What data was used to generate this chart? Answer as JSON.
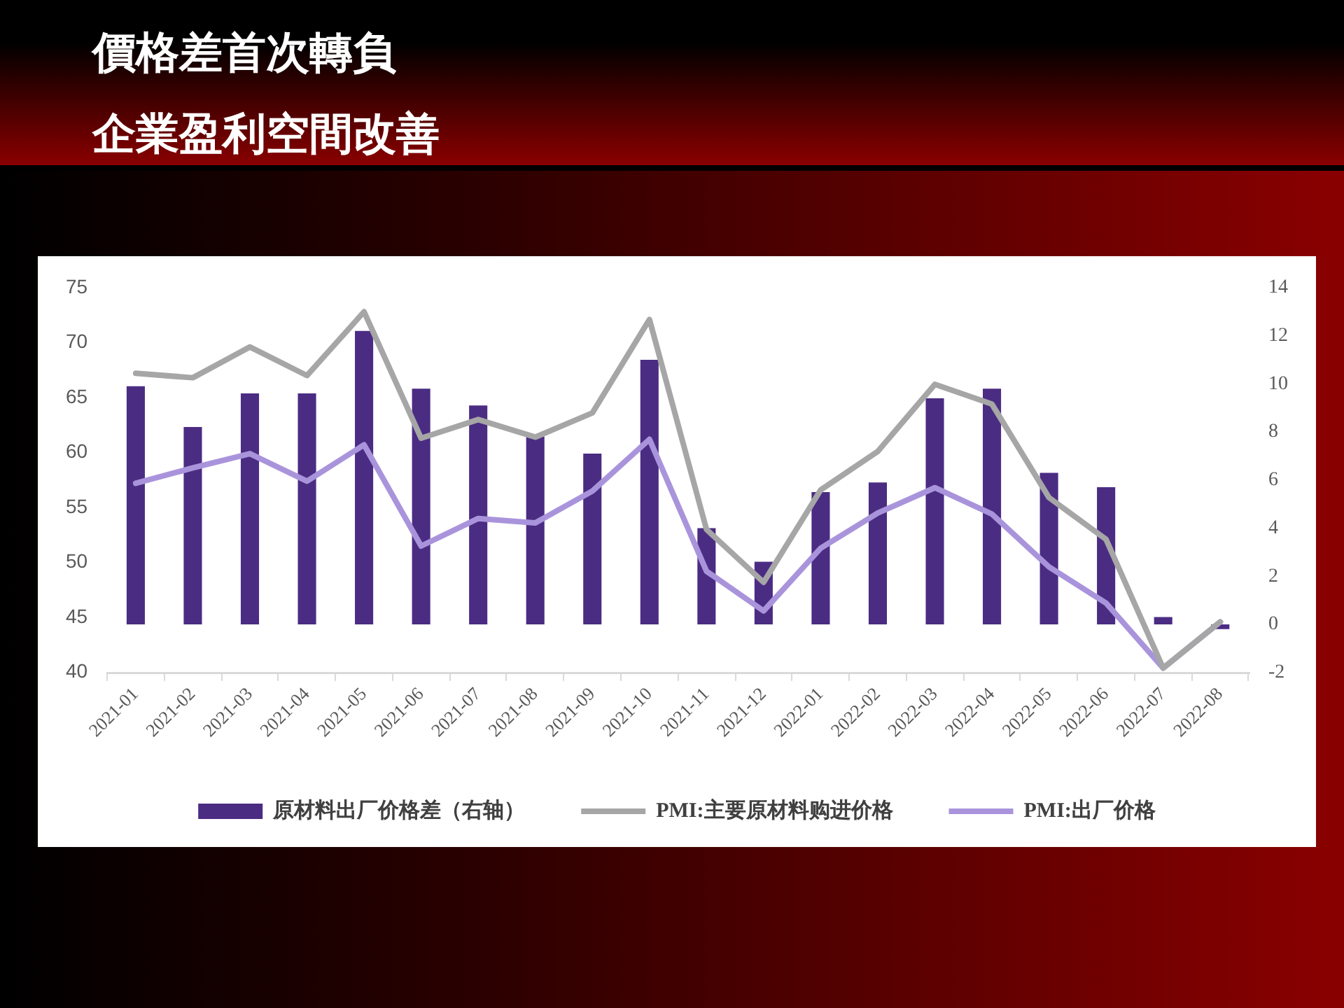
{
  "chart_data": {
    "type": "bar",
    "title": "價格差首次轉負",
    "subtitle": "企業盈利空間改善",
    "categories": [
      "2021-01",
      "2021-02",
      "2021-03",
      "2021-04",
      "2021-05",
      "2021-06",
      "2021-07",
      "2021-08",
      "2021-09",
      "2021-10",
      "2021-11",
      "2021-12",
      "2022-01",
      "2022-02",
      "2022-03",
      "2022-04",
      "2022-05",
      "2022-06",
      "2022-07",
      "2022-08"
    ],
    "series": [
      {
        "name": "原材料出厂价格差（右轴）",
        "axis": "y2",
        "color": "#4b2c83",
        "values": [
          9.9,
          8.2,
          9.6,
          9.6,
          12.2,
          9.8,
          9.1,
          7.8,
          7.1,
          11,
          4,
          2.6,
          5.5,
          5.9,
          9.4,
          9.8,
          6.3,
          5.7,
          0.3,
          -0.2
        ]
      },
      {
        "name": "PMI:主要原材料购进价格",
        "type": "line",
        "color": "#a6a6a6",
        "values": [
          67.2,
          66.8,
          69.6,
          67,
          72.8,
          61.3,
          63,
          61.4,
          63.6,
          72.1,
          53,
          48.2,
          56.6,
          60.1,
          66.2,
          64.4,
          55.9,
          52.1,
          40.4,
          44.6
        ]
      },
      {
        "name": "PMI:出厂价格",
        "type": "line",
        "color": "#a994dc",
        "values": [
          57.2,
          58.6,
          59.9,
          57.4,
          60.7,
          51.5,
          54,
          53.6,
          56.5,
          61.2,
          49.2,
          45.6,
          51.3,
          54.5,
          56.8,
          54.4,
          49.6,
          46.3,
          40.4,
          44.6
        ]
      }
    ],
    "ylim": [
      40,
      75
    ],
    "yticks": [
      40,
      45,
      50,
      55,
      60,
      65,
      70,
      75
    ],
    "y2lim": [
      -2,
      14
    ],
    "y2ticks": [
      -2,
      0,
      2,
      4,
      6,
      8,
      10,
      12,
      14
    ],
    "legend": "bottom",
    "marker": "none"
  }
}
